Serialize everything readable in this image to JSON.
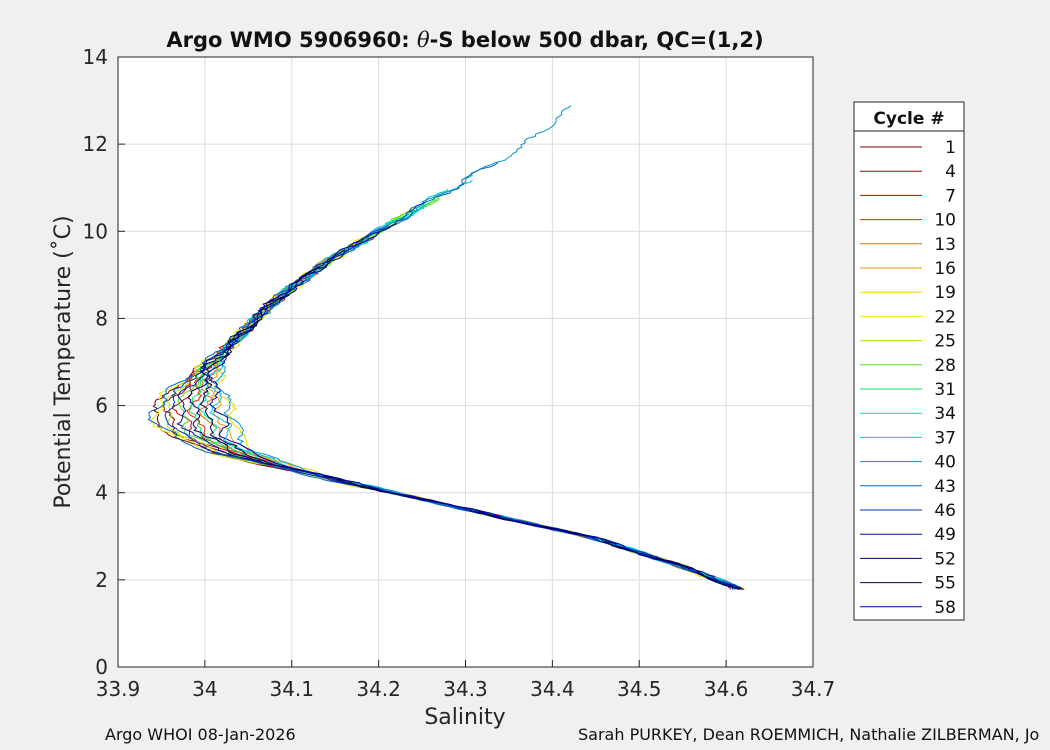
{
  "chart_data": {
    "type": "line",
    "title_parts": [
      "Argo WMO 5906960: ",
      "θ",
      "-S below 500 dbar,  QC=(1,2)"
    ],
    "xlabel": "Salinity",
    "ylabel": "Potential Temperature (˚C)",
    "xlim": [
      33.9,
      34.7
    ],
    "ylim": [
      0,
      14
    ],
    "xticks": [
      33.9,
      34.0,
      34.1,
      34.2,
      34.3,
      34.4,
      34.5,
      34.6,
      34.7
    ],
    "xtick_labels": [
      "33.9",
      "34",
      "34.1",
      "34.2",
      "34.3",
      "34.4",
      "34.5",
      "34.6",
      "34.7"
    ],
    "yticks": [
      0,
      2,
      4,
      6,
      8,
      10,
      12,
      14
    ],
    "ytick_labels": [
      "0",
      "2",
      "4",
      "6",
      "8",
      "10",
      "12",
      "14"
    ],
    "grid": true,
    "legend_title": "Cycle #",
    "legend_position": "right",
    "backbone": [
      [
        34.615,
        1.8
      ],
      [
        34.55,
        2.3
      ],
      [
        34.45,
        2.95
      ],
      [
        34.35,
        3.4
      ],
      [
        34.25,
        3.85
      ],
      [
        34.15,
        4.3
      ],
      [
        34.08,
        4.65
      ],
      [
        34.03,
        4.95
      ],
      [
        34.0,
        5.3
      ],
      [
        33.985,
        5.8
      ],
      [
        33.99,
        6.4
      ],
      [
        34.01,
        7.0
      ],
      [
        34.04,
        7.6
      ],
      [
        34.08,
        8.4
      ],
      [
        34.14,
        9.3
      ],
      [
        34.2,
        10.0
      ],
      [
        34.26,
        10.7
      ],
      [
        34.32,
        11.4
      ],
      [
        34.37,
        12.0
      ],
      [
        34.425,
        12.9
      ]
    ],
    "series": [
      {
        "name": "1",
        "color": "#800000",
        "tmax": 10.0
      },
      {
        "name": "4",
        "color": "#a00000",
        "tmax": 9.8
      },
      {
        "name": "7",
        "color": "#cc0000",
        "tmax": 10.1
      },
      {
        "name": "10",
        "color": "#e62000",
        "tmax": 10.3
      },
      {
        "name": "13",
        "color": "#e86a00",
        "tmax": 9.9
      },
      {
        "name": "16",
        "color": "#ee9a00",
        "tmax": 10.2
      },
      {
        "name": "19",
        "color": "#f0d800",
        "tmax": 10.5
      },
      {
        "name": "22",
        "color": "#e6f000",
        "tmax": 10.4
      },
      {
        "name": "25",
        "color": "#a6ee00",
        "tmax": 10.8
      },
      {
        "name": "28",
        "color": "#50e020",
        "tmax": 10.9
      },
      {
        "name": "31",
        "color": "#10e060",
        "tmax": 11.0
      },
      {
        "name": "34",
        "color": "#00e0b0",
        "tmax": 10.6
      },
      {
        "name": "37",
        "color": "#00c8e8",
        "tmax": 11.2
      },
      {
        "name": "40",
        "color": "#0098d0",
        "tmax": 12.9
      },
      {
        "name": "43",
        "color": "#0068b8",
        "tmax": 11.6
      },
      {
        "name": "46",
        "color": "#0030c0",
        "tmax": 10.7
      },
      {
        "name": "49",
        "color": "#0010a0",
        "tmax": 10.2
      },
      {
        "name": "52",
        "color": "#000070",
        "tmax": 9.2
      },
      {
        "name": "55",
        "color": "#000050",
        "tmax": 9.6
      },
      {
        "name": "58",
        "color": "#0000a8",
        "tmax": 10.0
      }
    ]
  },
  "footer": {
    "left": "Argo WHOI 08-Jan-2026",
    "right": "Sarah PURKEY, Dean ROEMMICH, Nathalie ZILBERMAN, Jo"
  }
}
